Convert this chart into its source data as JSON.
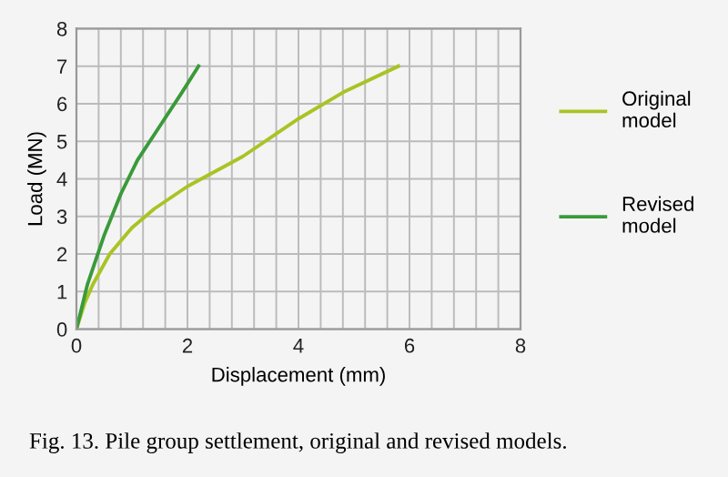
{
  "chart_data": {
    "type": "line",
    "xlabel": "Displacement (mm)",
    "ylabel": "Load (MN)",
    "xlim": [
      0,
      8
    ],
    "ylim": [
      0,
      8
    ],
    "xticks": [
      0,
      2,
      4,
      6,
      8
    ],
    "yticks": [
      0,
      1,
      2,
      3,
      4,
      5,
      6,
      7,
      8
    ],
    "grid": true,
    "legend": "right",
    "series": [
      {
        "name": "Original\nmodel",
        "color": "#a8c424",
        "x": [
          0,
          0.15,
          0.3,
          0.6,
          1.0,
          1.4,
          2.0,
          3.0,
          4.0,
          4.8,
          5.8
        ],
        "values": [
          0,
          0.7,
          1.2,
          2.0,
          2.7,
          3.2,
          3.8,
          4.6,
          5.6,
          6.3,
          7.0
        ]
      },
      {
        "name": "Revised\nmodel",
        "color": "#3a9a3a",
        "x": [
          0,
          0.2,
          0.5,
          0.8,
          1.1,
          1.5,
          1.9,
          2.2
        ],
        "values": [
          0,
          1.2,
          2.5,
          3.6,
          4.5,
          5.4,
          6.3,
          7.0
        ]
      }
    ],
    "annotations": [
      "Fig. 13. Pile group settlement, original and revised models."
    ]
  }
}
